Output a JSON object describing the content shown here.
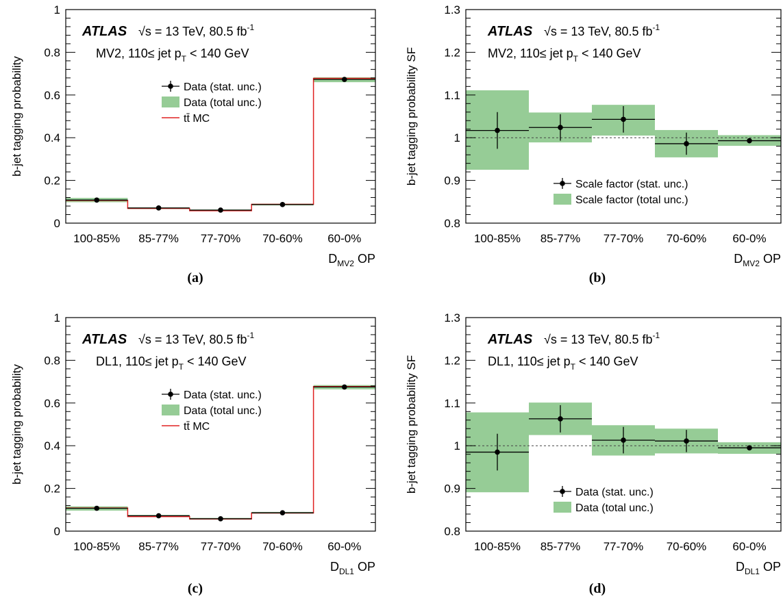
{
  "chart_data": [
    {
      "panel": "(a)",
      "type": "step",
      "experiment": "ATLAS",
      "energy": "√s = 13 TeV, 80.5 fb",
      "energy_sup": "-1",
      "condition_pre": "MV2,  110≤ jet p",
      "condition_sub": "T",
      "condition_post": " < 140 GeV",
      "ylabel": "b-jet tagging probability",
      "xlabel_main": "D",
      "xlabel_sub": "MV2",
      "xlabel_post": " OP",
      "categories": [
        "100-85%",
        "85-77%",
        "77-70%",
        "70-60%",
        "60-0%"
      ],
      "yticks": [
        "0",
        "0.2",
        "0.4",
        "0.6",
        "0.8",
        "1"
      ],
      "ylim": [
        0,
        1
      ],
      "legend": [
        "Data (stat. unc.)",
        "Data (total unc.)",
        "tt̄ MC"
      ],
      "series": [
        {
          "name": "Data (stat. unc.)",
          "kind": "points",
          "values": [
            0.108,
            0.071,
            0.061,
            0.087,
            0.673
          ],
          "stat_err": [
            0.004,
            0.002,
            0.002,
            0.003,
            0.005
          ]
        },
        {
          "name": "Data (total unc.)",
          "kind": "band",
          "low": [
            0.098,
            0.066,
            0.056,
            0.083,
            0.66
          ],
          "high": [
            0.118,
            0.074,
            0.064,
            0.091,
            0.683
          ]
        },
        {
          "name": "tt̄ MC",
          "kind": "step",
          "values": [
            0.106,
            0.069,
            0.058,
            0.088,
            0.678
          ]
        }
      ]
    },
    {
      "panel": "(b)",
      "type": "step",
      "experiment": "ATLAS",
      "energy": "√s = 13 TeV, 80.5 fb",
      "energy_sup": "-1",
      "condition_pre": "MV2,  110≤ jet p",
      "condition_sub": "T",
      "condition_post": " < 140 GeV",
      "ylabel": "b-jet tagging probability SF",
      "xlabel_main": "D",
      "xlabel_sub": "MV2",
      "xlabel_post": " OP",
      "categories": [
        "100-85%",
        "85-77%",
        "77-70%",
        "70-60%",
        "60-0%"
      ],
      "yticks": [
        "0.8",
        "0.9",
        "1",
        "1.1",
        "1.2",
        "1.3"
      ],
      "ylim": [
        0.8,
        1.3
      ],
      "reference_line": 1,
      "legend": [
        "Scale factor (stat. unc.)",
        "Scale factor (total unc.)"
      ],
      "series": [
        {
          "name": "Scale factor (stat. unc.)",
          "kind": "points",
          "values": [
            1.017,
            1.024,
            1.043,
            0.986,
            0.993
          ],
          "stat_err": [
            0.043,
            0.031,
            0.031,
            0.026,
            0.006
          ]
        },
        {
          "name": "Scale factor (total unc.)",
          "kind": "band",
          "low": [
            0.925,
            0.989,
            1.005,
            0.954,
            0.981
          ],
          "high": [
            1.111,
            1.059,
            1.077,
            1.018,
            1.006
          ]
        }
      ]
    },
    {
      "panel": "(c)",
      "type": "step",
      "experiment": "ATLAS",
      "energy": "√s = 13 TeV, 80.5 fb",
      "energy_sup": "-1",
      "condition_pre": "DL1,  110≤ jet p",
      "condition_sub": "T",
      "condition_post": " < 140 GeV",
      "ylabel": "b-jet tagging probability",
      "xlabel_main": "D",
      "xlabel_sub": "DL1",
      "xlabel_post": " OP",
      "categories": [
        "100-85%",
        "85-77%",
        "77-70%",
        "70-60%",
        "60-0%"
      ],
      "yticks": [
        "0",
        "0.2",
        "0.4",
        "0.6",
        "0.8",
        "1"
      ],
      "ylim": [
        0,
        1
      ],
      "legend": [
        "Data (stat. unc.)",
        "Data (total unc.)",
        "tt̄ MC"
      ],
      "series": [
        {
          "name": "Data (stat. unc.)",
          "kind": "points",
          "values": [
            0.107,
            0.072,
            0.058,
            0.086,
            0.675
          ],
          "stat_err": [
            0.004,
            0.002,
            0.002,
            0.003,
            0.005
          ]
        },
        {
          "name": "Data (total unc.)",
          "kind": "band",
          "low": [
            0.096,
            0.066,
            0.054,
            0.082,
            0.664
          ],
          "high": [
            0.116,
            0.076,
            0.062,
            0.09,
            0.684
          ]
        },
        {
          "name": "tt̄ MC",
          "kind": "step",
          "values": [
            0.108,
            0.068,
            0.057,
            0.085,
            0.677
          ]
        }
      ]
    },
    {
      "panel": "(d)",
      "type": "step",
      "experiment": "ATLAS",
      "energy": "√s = 13 TeV, 80.5 fb",
      "energy_sup": "-1",
      "condition_pre": "DL1,  110≤ jet p",
      "condition_sub": "T",
      "condition_post": " < 140 GeV",
      "ylabel": "b-jet tagging probability SF",
      "xlabel_main": "D",
      "xlabel_sub": "DL1",
      "xlabel_post": " OP",
      "categories": [
        "100-85%",
        "85-77%",
        "77-70%",
        "70-60%",
        "60-0%"
      ],
      "yticks": [
        "0.8",
        "0.9",
        "1",
        "1.1",
        "1.2",
        "1.3"
      ],
      "ylim": [
        0.8,
        1.3
      ],
      "reference_line": 1,
      "legend": [
        "Data (stat. unc.)",
        "Data (total unc.)"
      ],
      "series": [
        {
          "name": "Data (stat. unc.)",
          "kind": "points",
          "values": [
            0.985,
            1.063,
            1.013,
            1.011,
            0.995
          ],
          "stat_err": [
            0.043,
            0.032,
            0.031,
            0.026,
            0.006
          ]
        },
        {
          "name": "Data (total unc.)",
          "kind": "band",
          "low": [
            0.891,
            1.025,
            0.977,
            0.982,
            0.981
          ],
          "high": [
            1.078,
            1.101,
            1.048,
            1.04,
            1.008
          ]
        }
      ]
    }
  ],
  "colors": {
    "band": "#96cc96",
    "mc_line": "#e02020",
    "data": "#000000",
    "reference_line": "#444444"
  }
}
